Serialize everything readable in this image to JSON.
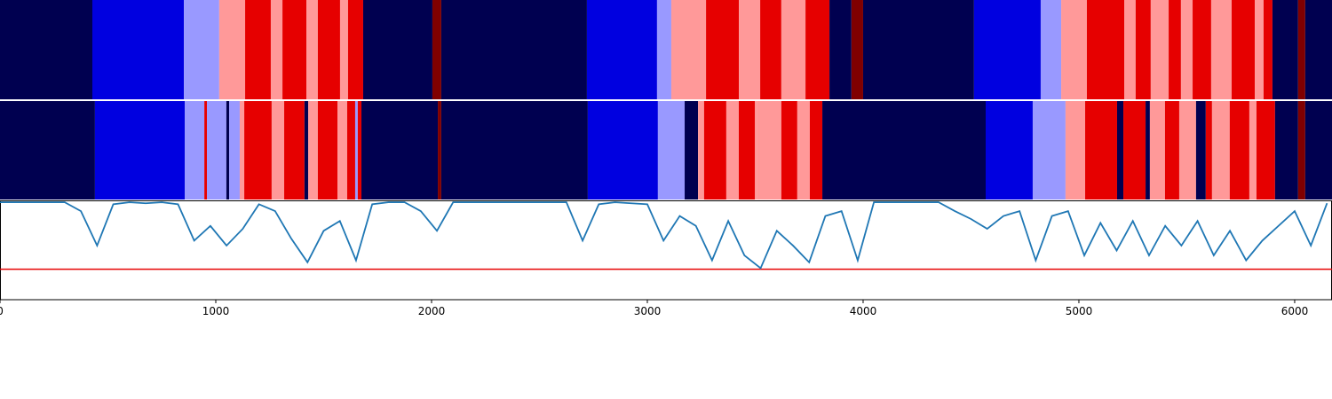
{
  "chart_data": {
    "type": "segmentation",
    "xlim": [
      0,
      6173
    ],
    "xticks": [
      0,
      1000,
      2000,
      3000,
      4000,
      5000,
      6000
    ],
    "colors": [
      "#000050",
      "#0000e0",
      "#9999ff",
      "#ff9999",
      "#e60000",
      "#800000"
    ],
    "rows": [
      {
        "segments": [
          [
            0,
            428,
            0
          ],
          [
            428,
            852,
            1
          ],
          [
            852,
            1016,
            2
          ],
          [
            1016,
            1136,
            3
          ],
          [
            1136,
            1255,
            4
          ],
          [
            1255,
            1309,
            3
          ],
          [
            1309,
            1420,
            4
          ],
          [
            1420,
            1473,
            3
          ],
          [
            1473,
            1576,
            4
          ],
          [
            1576,
            1613,
            3
          ],
          [
            1613,
            1683,
            4
          ],
          [
            1683,
            2004,
            0
          ],
          [
            2004,
            2045,
            5
          ],
          [
            2045,
            2720,
            0
          ],
          [
            2720,
            3045,
            1
          ],
          [
            3045,
            3111,
            2
          ],
          [
            3111,
            3272,
            3
          ],
          [
            3272,
            3424,
            4
          ],
          [
            3424,
            3523,
            3
          ],
          [
            3523,
            3621,
            4
          ],
          [
            3621,
            3733,
            3
          ],
          [
            3733,
            3844,
            4
          ],
          [
            3844,
            3946,
            0
          ],
          [
            3946,
            4000,
            5
          ],
          [
            4000,
            4514,
            0
          ],
          [
            4514,
            4823,
            1
          ],
          [
            4823,
            4918,
            2
          ],
          [
            4918,
            5037,
            3
          ],
          [
            5037,
            5210,
            4
          ],
          [
            5210,
            5263,
            3
          ],
          [
            5263,
            5333,
            4
          ],
          [
            5333,
            5416,
            3
          ],
          [
            5416,
            5473,
            4
          ],
          [
            5473,
            5527,
            3
          ],
          [
            5527,
            5613,
            4
          ],
          [
            5613,
            5708,
            3
          ],
          [
            5708,
            5815,
            4
          ],
          [
            5815,
            5856,
            3
          ],
          [
            5856,
            5897,
            4
          ],
          [
            5897,
            6016,
            0
          ],
          [
            6016,
            6049,
            5
          ],
          [
            6049,
            6173,
            0
          ]
        ]
      },
      {
        "segments": [
          [
            0,
            440,
            0
          ],
          [
            440,
            856,
            1
          ],
          [
            856,
            947,
            2
          ],
          [
            947,
            959,
            4
          ],
          [
            959,
            1049,
            2
          ],
          [
            1049,
            1062,
            0
          ],
          [
            1062,
            1111,
            2
          ],
          [
            1111,
            1132,
            3
          ],
          [
            1132,
            1259,
            4
          ],
          [
            1259,
            1317,
            3
          ],
          [
            1317,
            1411,
            4
          ],
          [
            1411,
            1428,
            0
          ],
          [
            1428,
            1473,
            3
          ],
          [
            1473,
            1564,
            4
          ],
          [
            1564,
            1609,
            3
          ],
          [
            1609,
            1646,
            4
          ],
          [
            1646,
            1658,
            2
          ],
          [
            1658,
            1675,
            4
          ],
          [
            1675,
            2029,
            0
          ],
          [
            2029,
            2045,
            5
          ],
          [
            2045,
            2724,
            0
          ],
          [
            2724,
            3049,
            1
          ],
          [
            3049,
            3173,
            2
          ],
          [
            3173,
            3235,
            0
          ],
          [
            3235,
            3263,
            3
          ],
          [
            3263,
            3366,
            4
          ],
          [
            3366,
            3424,
            3
          ],
          [
            3424,
            3498,
            4
          ],
          [
            3498,
            3510,
            3
          ],
          [
            3510,
            3621,
            3
          ],
          [
            3621,
            3695,
            4
          ],
          [
            3695,
            3753,
            3
          ],
          [
            3753,
            3811,
            4
          ],
          [
            3811,
            4568,
            0
          ],
          [
            4568,
            4786,
            1
          ],
          [
            4786,
            4938,
            2
          ],
          [
            4938,
            5029,
            3
          ],
          [
            5029,
            5177,
            4
          ],
          [
            5177,
            5206,
            0
          ],
          [
            5206,
            5309,
            4
          ],
          [
            5309,
            5329,
            0
          ],
          [
            5329,
            5399,
            3
          ],
          [
            5399,
            5465,
            4
          ],
          [
            5465,
            5543,
            3
          ],
          [
            5543,
            5588,
            0
          ],
          [
            5588,
            5617,
            4
          ],
          [
            5617,
            5699,
            3
          ],
          [
            5699,
            5790,
            4
          ],
          [
            5790,
            5823,
            3
          ],
          [
            5823,
            5909,
            4
          ],
          [
            5909,
            6016,
            0
          ],
          [
            6016,
            6049,
            5
          ],
          [
            6049,
            6173,
            0
          ]
        ]
      }
    ],
    "line": {
      "color": "#1f77b4",
      "ylim": [
        0,
        1
      ],
      "x": [
        0,
        75,
        150,
        225,
        300,
        375,
        450,
        525,
        600,
        675,
        750,
        825,
        900,
        975,
        1050,
        1125,
        1200,
        1275,
        1350,
        1425,
        1500,
        1575,
        1650,
        1725,
        1800,
        1875,
        1950,
        2025,
        2100,
        2175,
        2250,
        2325,
        2400,
        2475,
        2550,
        2625,
        2700,
        2775,
        2850,
        2925,
        3000,
        3075,
        3150,
        3225,
        3300,
        3375,
        3450,
        3525,
        3600,
        3675,
        3750,
        3825,
        3900,
        3975,
        4050,
        4125,
        4200,
        4275,
        4350,
        4425,
        4500,
        4575,
        4650,
        4725,
        4800,
        4875,
        4950,
        5025,
        5100,
        5175,
        5250,
        5325,
        5400,
        5475,
        5550,
        5625,
        5700,
        5775,
        5850,
        5925,
        6000,
        6075,
        6150
      ],
      "values": [
        0.99,
        0.99,
        0.99,
        0.99,
        0.99,
        0.9,
        0.55,
        0.97,
        0.99,
        0.98,
        0.99,
        0.97,
        0.6,
        0.75,
        0.55,
        0.72,
        0.97,
        0.9,
        0.62,
        0.38,
        0.7,
        0.8,
        0.4,
        0.97,
        0.99,
        0.99,
        0.9,
        0.7,
        0.99,
        0.99,
        0.99,
        0.99,
        0.99,
        0.99,
        0.99,
        0.99,
        0.6,
        0.97,
        0.99,
        0.98,
        0.97,
        0.6,
        0.85,
        0.75,
        0.4,
        0.8,
        0.45,
        0.32,
        0.7,
        0.55,
        0.38,
        0.85,
        0.9,
        0.4,
        0.99,
        0.99,
        0.99,
        0.99,
        0.99,
        0.9,
        0.82,
        0.72,
        0.85,
        0.9,
        0.4,
        0.85,
        0.9,
        0.45,
        0.78,
        0.5,
        0.8,
        0.45,
        0.75,
        0.55,
        0.8,
        0.45,
        0.7,
        0.4,
        0.6,
        0.75,
        0.9,
        0.55,
        0.98
      ],
      "hline": {
        "value": 0.31,
        "color": "#e60000"
      }
    }
  }
}
